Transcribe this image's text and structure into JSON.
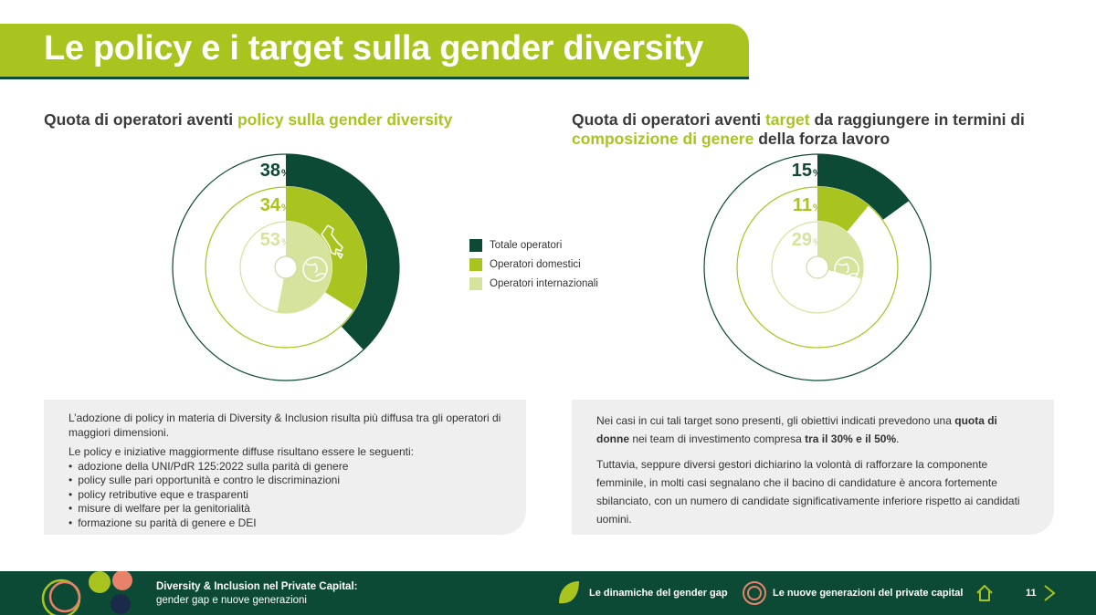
{
  "title": "Le policy e i target sulla gender diversity",
  "left": {
    "subtitle_pre": "Quota di operatori aventi ",
    "subtitle_hl": "policy sulla gender diversity",
    "chart_data": {
      "type": "pie",
      "series": [
        {
          "name": "Totale operatori",
          "value": 38,
          "label": "38"
        },
        {
          "name": "Operatori domestici",
          "value": 34,
          "label": "34"
        },
        {
          "name": "Operatori internazionali",
          "value": 53,
          "label": "53"
        }
      ],
      "unit": "%"
    },
    "box": {
      "p1": "L’adozione di policy in materia di Diversity & Inclusion risulta più diffusa tra gli operatori di maggiori dimensioni.",
      "p2": "Le policy e iniziative maggiormente diffuse risultano essere le seguenti:",
      "items": [
        "adozione della UNI/PdR 125:2022 sulla parità di genere",
        "policy sulle pari opportunità e contro le discriminazioni",
        "policy retributive eque e trasparenti",
        "misure di welfare per la genitorialità",
        "formazione su parità di genere e DEI"
      ]
    }
  },
  "right": {
    "subtitle_pre": "Quota di operatori aventi ",
    "subtitle_hl1": "target",
    "subtitle_mid": " da raggiungere in termini di ",
    "subtitle_hl2": "composizione di genere",
    "subtitle_post": " della forza lavoro",
    "chart_data": {
      "type": "pie",
      "series": [
        {
          "name": "Totale operatori",
          "value": 15,
          "label": "15"
        },
        {
          "name": "Operatori domestici",
          "value": 11,
          "label": "11"
        },
        {
          "name": "Operatori internazionali",
          "value": 29,
          "label": "29"
        }
      ],
      "unit": "%"
    },
    "box": {
      "p1_pre": "Nei casi in cui tali target sono presenti, gli obiettivi indicati prevedono una ",
      "p1_b1": "quota di donne",
      "p1_mid": " nei team di investimento compresa ",
      "p1_b2": "tra il 30% e il 50%",
      "p1_post": ".",
      "p2": "Tuttavia, seppure diversi gestori dichiarino la volontà di rafforzare la componente femminile, in molti casi segnalano che il bacino di candidature è ancora fortemente sbilanciato, con un numero di candidate significativamente inferiore rispetto ai candidati uomini."
    }
  },
  "legend": [
    {
      "label": "Totale operatori",
      "color": "#0c4a35"
    },
    {
      "label": "Operatori domestici",
      "color": "#a9c41f"
    },
    {
      "label": "Operatori internazionali",
      "color": "#d5e39c"
    }
  ],
  "footer": {
    "title": "Diversity & Inclusion nel Private Capital:",
    "subtitle": "gender gap e nuove generazioni",
    "nav1": "Le dinamiche del gender gap",
    "nav2": "Le nuove generazioni del private capital",
    "page": "11"
  },
  "colors": {
    "dark_green": "#0c4a35",
    "lime": "#a9c41f",
    "light_lime": "#d5e39c",
    "box_bg": "#efefef"
  }
}
